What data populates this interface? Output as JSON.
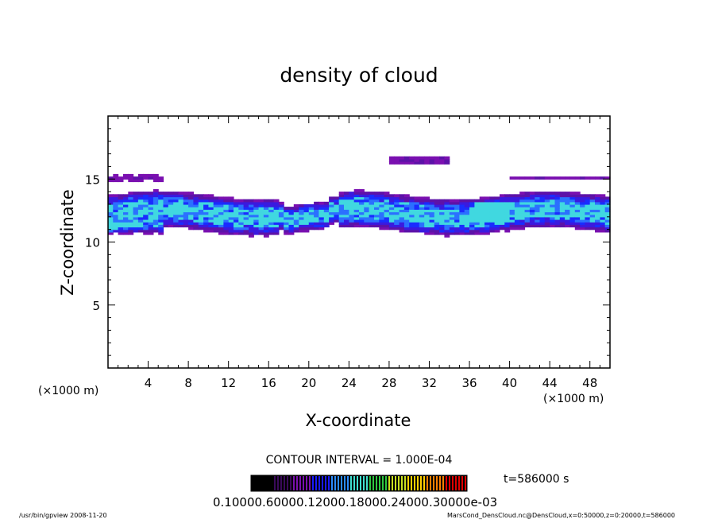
{
  "chart_data": {
    "type": "heatmap",
    "title": "density of cloud",
    "xlabel": "X-coordinate",
    "ylabel": "Z-coordinate",
    "x_unit": "(×1000 m)",
    "xlim": [
      0,
      50
    ],
    "ylim": [
      0,
      20
    ],
    "x_ticks": [
      4,
      8,
      12,
      16,
      20,
      24,
      28,
      32,
      36,
      40,
      44,
      48
    ],
    "y_ticks": [
      5,
      10,
      15
    ],
    "x_tick_labels": [
      "4",
      "8",
      "12",
      "16",
      "20",
      "24",
      "28",
      "32",
      "36",
      "40",
      "44",
      "48"
    ],
    "y_tick_labels": [
      "5",
      "10",
      "15"
    ],
    "contour_interval": "CONTOUR INTERVAL = 1.000E-04",
    "time_label": "t=586000 s",
    "colorbar_label": "0.10000.60000.12000.18000.24000.30000e-03",
    "colormap": [
      "#000000",
      "#3a0a5a",
      "#7a10b0",
      "#1a1aff",
      "#2b8cff",
      "#40e0d0",
      "#2ec840",
      "#c8e020",
      "#ffd000",
      "#ff8000",
      "#e00000"
    ],
    "cloud_layers": [
      {
        "name": "main",
        "x_range": [
          0,
          50
        ],
        "z_center": 12.2,
        "thickness": 1.6,
        "peak": 0.00024
      },
      {
        "name": "lower-west",
        "x_range": [
          0,
          5.5
        ],
        "z_center": 11.1,
        "thickness": 0.6,
        "peak": 0.00014
      },
      {
        "name": "upper-west",
        "x_range": [
          0,
          5.2
        ],
        "z_center": 15.0,
        "thickness": 0.35,
        "peak": 7e-05
      },
      {
        "name": "upper-east",
        "x_range": [
          40.0,
          50
        ],
        "z_center": 15.0,
        "thickness": 0.25,
        "peak": 6e-05
      },
      {
        "name": "upper-middle",
        "x_range": [
          28.0,
          33.6
        ],
        "z_center": 16.4,
        "thickness": 0.55,
        "peak": 7e-05
      },
      {
        "name": "dense-core",
        "x_range": [
          36.5,
          40.0
        ],
        "z_center": 12.3,
        "thickness": 0.9,
        "peak": 0.0003
      }
    ]
  },
  "footer": {
    "left": "/usr/bin/gpview  2008-11-20",
    "right": "MarsCond_DensCloud.nc@DensCloud,x=0:50000,z=0:20000,t=586000"
  }
}
